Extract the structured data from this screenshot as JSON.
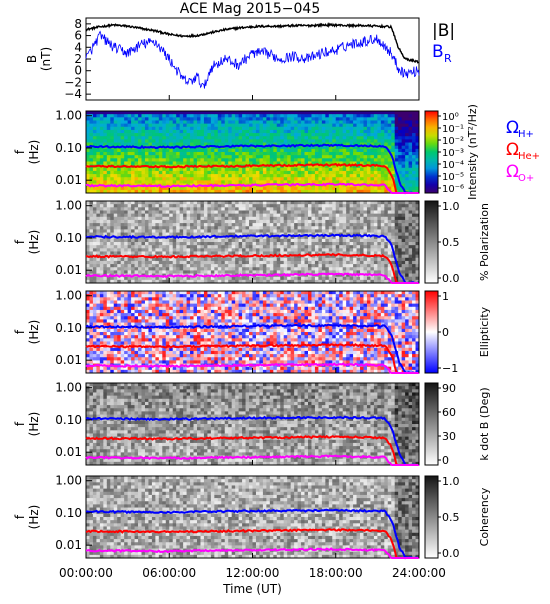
{
  "title": "ACE Mag 2015−045",
  "xlabel": "Time (UT)",
  "x_ticks": [
    "00:00:00",
    "06:00:00",
    "12:00:00",
    "18:00:00",
    "24:00:00"
  ],
  "panel_b": {
    "ylabel": [
      "B",
      "(nT)"
    ],
    "ticks": [
      "−4",
      "−2",
      "0",
      "2",
      "4",
      "6",
      "8"
    ],
    "legend": {
      "b_total": "|B|",
      "b_r_main": "B",
      "b_r_sub": "R"
    },
    "colors": {
      "b_total": "#000000",
      "b_r": "#0000ff"
    }
  },
  "freq_ylabel": [
    "f",
    "(Hz)"
  ],
  "freq_ticks": [
    "1.00",
    "0.10",
    "0.01"
  ],
  "gyro_legend": {
    "h_main": "Ω",
    "h_sub": "H+",
    "he_main": "Ω",
    "he_sub": "He+",
    "o_main": "Ω",
    "o_sub": "O+",
    "colors": {
      "h": "#0000ff",
      "he": "#ff0000",
      "o": "#ff00ff"
    }
  },
  "panels": [
    {
      "id": "intensity",
      "colorbar_label": "Intensity (nT²/Hz)",
      "colorbar_ticks": [
        "10⁰",
        "10⁻¹",
        "10⁻²",
        "10⁻³",
        "10⁻⁴",
        "10⁻⁵",
        "10⁻⁶"
      ],
      "colormap": "rainbow"
    },
    {
      "id": "polarization",
      "colorbar_label": "% Polarization",
      "colorbar_ticks": [
        "1.0",
        "0.5",
        "0.0"
      ],
      "colormap": "gray"
    },
    {
      "id": "ellipticity",
      "colorbar_label": "Ellipticity",
      "colorbar_ticks": [
        "1",
        "0",
        "−1"
      ],
      "colormap": "bwr"
    },
    {
      "id": "kdotb",
      "colorbar_label": "k dot B (Deg)",
      "colorbar_ticks": [
        "90",
        "60",
        "30",
        "0"
      ],
      "colormap": "gray"
    },
    {
      "id": "coherency",
      "colorbar_label": "Coherency",
      "colorbar_ticks": [
        "1.0",
        "0.5",
        "0.0"
      ],
      "colormap": "gray"
    }
  ],
  "chart_data": {
    "type": "line",
    "x_unit": "hours UT",
    "xlim": [
      0,
      24
    ],
    "b_panel": {
      "ylim": [
        -5,
        9
      ],
      "series": [
        {
          "name": "|B|",
          "x": [
            0,
            1,
            2,
            3,
            4,
            5,
            6,
            7,
            8,
            9,
            10,
            11,
            12,
            13,
            14,
            15,
            16,
            17,
            18,
            19,
            20,
            21,
            22,
            22.5,
            23,
            24
          ],
          "y": [
            7.0,
            7.5,
            7.8,
            7.6,
            7.2,
            6.8,
            6.2,
            5.9,
            6.0,
            6.5,
            7.0,
            7.3,
            7.5,
            7.6,
            7.6,
            7.7,
            7.7,
            7.8,
            7.8,
            7.7,
            7.7,
            7.6,
            7.5,
            4.0,
            2.0,
            1.5
          ]
        },
        {
          "name": "B_R",
          "x": [
            0,
            0.5,
            1,
            2,
            3,
            4,
            5,
            6,
            7,
            7.5,
            8,
            8.5,
            9,
            10,
            11,
            12,
            13,
            14,
            15,
            16,
            17,
            18,
            19,
            20,
            21,
            22,
            22.5,
            23,
            24
          ],
          "y": [
            2.0,
            4.0,
            6.0,
            4.0,
            3.0,
            4.5,
            5.0,
            2.0,
            -1.5,
            -2.0,
            -1.0,
            -3.0,
            0.5,
            2.0,
            1.0,
            3.0,
            3.0,
            2.0,
            2.5,
            2.0,
            3.0,
            3.5,
            4.5,
            5.0,
            5.5,
            3.0,
            0.5,
            -0.5,
            0.0
          ]
        }
      ]
    },
    "gyrofrequencies_hz": {
      "x": [
        0,
        6,
        12,
        18,
        21.5,
        22.0,
        22.3,
        22.6,
        23,
        24
      ],
      "H+": [
        0.11,
        0.105,
        0.115,
        0.12,
        0.115,
        0.06,
        0.02,
        0.008,
        0.004,
        0.004
      ],
      "He+": [
        0.027,
        0.026,
        0.028,
        0.03,
        0.028,
        0.015,
        0.005,
        0.002,
        0.001,
        0.001
      ],
      "O+": [
        0.0068,
        0.0065,
        0.007,
        0.0075,
        0.007,
        0.004,
        0.0012,
        0.0006,
        0.0003,
        0.0003
      ]
    },
    "freq_axis": {
      "scale": "log",
      "ylim_hz": [
        0.004,
        1.4
      ],
      "ticks_hz": [
        1.0,
        0.1,
        0.01
      ]
    }
  }
}
